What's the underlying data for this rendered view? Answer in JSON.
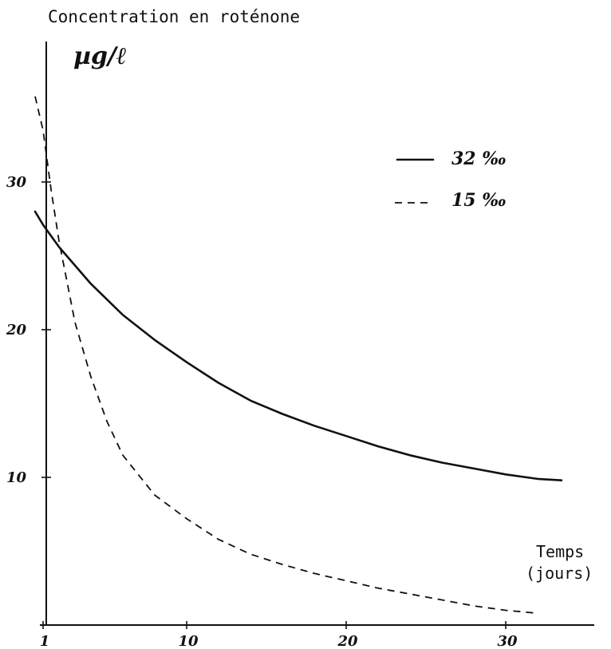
{
  "chart_data": {
    "type": "line",
    "title": "Concentration en roténone",
    "ylabel_unit": "µg/ℓ",
    "xlabel_line1": "Temps",
    "xlabel_line2": "(jours)",
    "xlim": [
      0,
      36
    ],
    "ylim": [
      0,
      40
    ],
    "x_ticks": [
      1,
      10,
      20,
      30
    ],
    "x_tick_labels": [
      "1",
      "10",
      "20",
      "30"
    ],
    "y_ticks": [
      10,
      20,
      30
    ],
    "y_tick_labels": [
      "10",
      "20",
      "30"
    ],
    "legend_position": "top-right",
    "series": [
      {
        "name": "32 ‰",
        "style": "solid",
        "x": [
          0.5,
          1,
          2,
          4,
          6,
          8,
          10,
          12,
          14,
          16,
          18,
          20,
          22,
          24,
          26,
          28,
          30,
          32,
          33.5
        ],
        "y": [
          28.0,
          27.1,
          25.6,
          23.1,
          21.0,
          19.3,
          17.8,
          16.4,
          15.2,
          14.3,
          13.5,
          12.8,
          12.1,
          11.5,
          11.0,
          10.6,
          10.2,
          9.9,
          9.8
        ]
      },
      {
        "name": "15 ‰",
        "style": "dashed",
        "x": [
          0.5,
          1,
          1.5,
          2,
          3,
          4,
          5,
          6,
          8,
          10,
          12,
          14,
          16,
          18,
          20,
          22,
          24,
          26,
          28,
          30,
          32
        ],
        "y": [
          35.8,
          33.5,
          29.5,
          26.0,
          20.5,
          16.8,
          13.8,
          11.5,
          8.8,
          7.2,
          5.8,
          4.8,
          4.1,
          3.5,
          3.0,
          2.5,
          2.1,
          1.7,
          1.3,
          1.0,
          0.8
        ]
      }
    ]
  }
}
